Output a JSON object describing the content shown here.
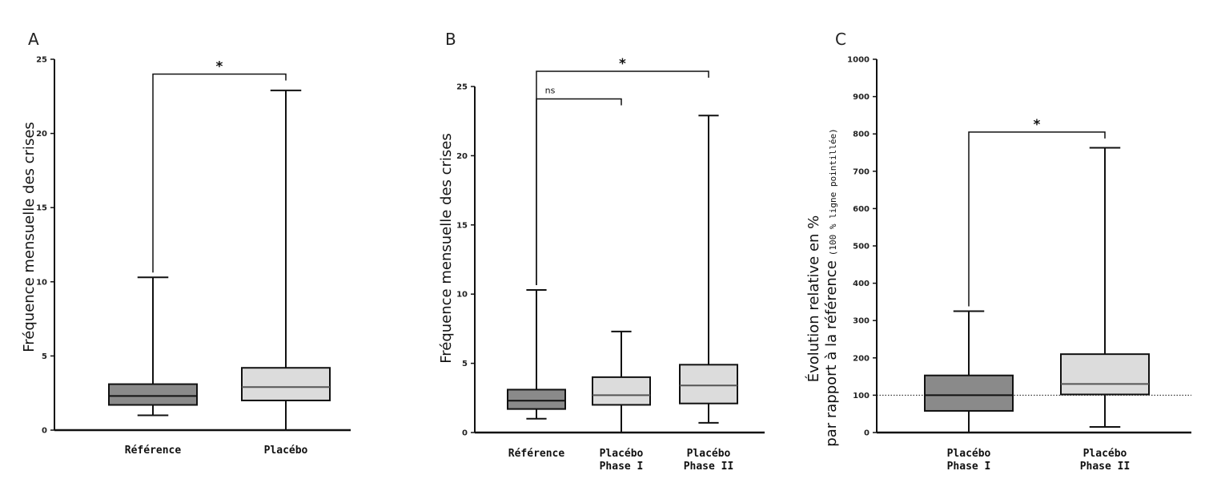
{
  "colors": {
    "box_reference": "#8a8a8a",
    "box_placebo": "#dcdcdc",
    "stroke": "#111111"
  },
  "chart_data": [
    {
      "type": "box",
      "panel_label": "A",
      "ylabel": "Fréquence mensuelle des crises",
      "ylim": [
        0,
        25
      ],
      "yticks": [
        0,
        5,
        10,
        15,
        20,
        25
      ],
      "categories": [
        "Référence",
        "Placébo"
      ],
      "boxes": [
        {
          "min": 1.0,
          "q1": 1.7,
          "median": 2.3,
          "q3": 3.1,
          "max": 10.3,
          "fill": "#8a8a8a"
        },
        {
          "min": 0.0,
          "q1": 2.0,
          "median": 2.9,
          "q3": 4.2,
          "max": 22.9,
          "fill": "#dcdcdc"
        }
      ],
      "brackets": [
        {
          "from": 0,
          "to": 1,
          "y": 24.0,
          "label": "*"
        }
      ]
    },
    {
      "type": "box",
      "panel_label": "B",
      "ylabel": "Fréquence mensuelle des crises",
      "ylim": [
        0,
        25
      ],
      "yticks": [
        0,
        5,
        10,
        15,
        20,
        25
      ],
      "categories": [
        [
          "Référence"
        ],
        [
          "Placébo",
          "Phase I"
        ],
        [
          "Placébo",
          "Phase II"
        ]
      ],
      "boxes": [
        {
          "min": 1.0,
          "q1": 1.7,
          "median": 2.3,
          "q3": 3.1,
          "max": 10.3,
          "fill": "#8a8a8a"
        },
        {
          "min": 0.0,
          "q1": 2.0,
          "median": 2.7,
          "q3": 4.0,
          "max": 7.3,
          "fill": "#dcdcdc"
        },
        {
          "min": 0.7,
          "q1": 2.1,
          "median": 3.4,
          "q3": 4.9,
          "max": 22.9,
          "fill": "#dcdcdc"
        }
      ],
      "brackets": [
        {
          "from": 0,
          "to": 1,
          "y": 24.1,
          "label": "ns"
        },
        {
          "from": 0,
          "to": 2,
          "y": 26.1,
          "label": "*"
        }
      ]
    },
    {
      "type": "box",
      "panel_label": "C",
      "ylabel": [
        "Évolution relative en %",
        "par rapport à la référence"
      ],
      "ylabel_note": "(100 % ligne pointillée)",
      "ylim": [
        0,
        1000
      ],
      "yticks": [
        0,
        100,
        200,
        300,
        400,
        500,
        600,
        700,
        800,
        900,
        1000
      ],
      "reference_line": 100,
      "categories": [
        [
          "Placébo",
          "Phase I"
        ],
        [
          "Placébo",
          "Phase II"
        ]
      ],
      "boxes": [
        {
          "min": 0,
          "q1": 58,
          "median": 100,
          "q3": 153,
          "max": 325,
          "fill": "#8a8a8a"
        },
        {
          "min": 15,
          "q1": 102,
          "median": 130,
          "q3": 210,
          "max": 763,
          "fill": "#dcdcdc"
        }
      ],
      "brackets": [
        {
          "from": 0,
          "to": 1,
          "y": 805,
          "label": "*"
        }
      ]
    }
  ]
}
